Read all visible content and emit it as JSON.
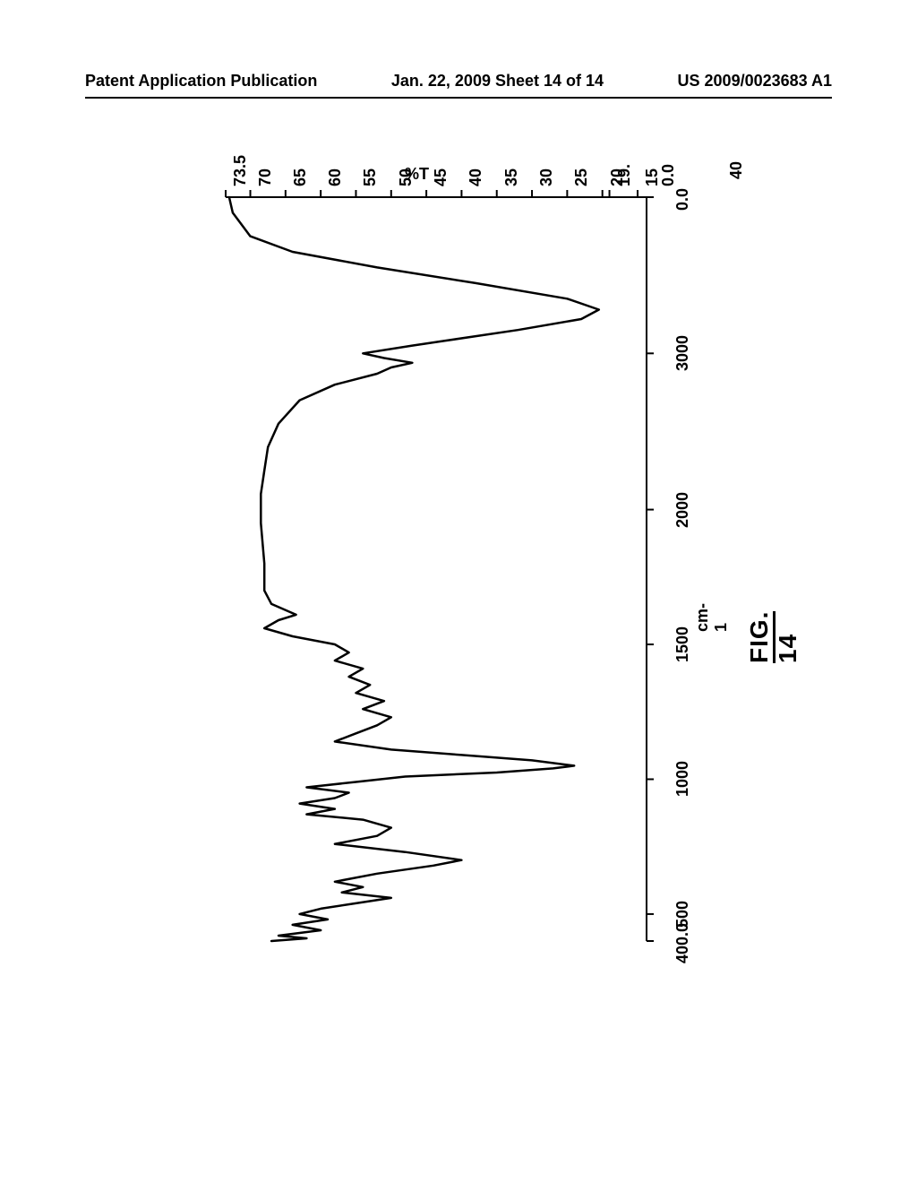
{
  "header": {
    "left": "Patent Application Publication",
    "center": "Jan. 22, 2009  Sheet 14 of 14",
    "right": "US 2009/0023683 A1"
  },
  "figure_caption": {
    "prefix": "FIG.",
    "number": "14"
  },
  "spectrum": {
    "type": "line",
    "xlabel": "cm-1",
    "ylabel": "%T",
    "misc_label": "40",
    "xlim": [
      400,
      4000
    ],
    "ylim": [
      15,
      73.5
    ],
    "xticks": [
      4000,
      3000,
      2000,
      1500,
      1000,
      500,
      400
    ],
    "xtick_labels": [
      "0.0",
      "3000",
      "2000",
      "1500",
      "1000",
      "500",
      "400.0"
    ],
    "yticks": [
      73.5,
      70,
      65,
      60,
      55,
      50,
      45,
      40,
      35,
      30,
      25,
      20,
      19,
      15
    ],
    "ytick_labels": [
      "73.5",
      "70",
      "65",
      "60",
      "55",
      "50",
      "45",
      "40",
      "35",
      "30",
      "25",
      "20",
      "19.",
      "15"
    ],
    "ytick_extra": "0.0",
    "line_color": "#000000",
    "line_width": 2.5,
    "background_color": "#ffffff",
    "axis_color": "#000000",
    "tick_length": 8,
    "data": [
      [
        4000,
        73.0
      ],
      [
        3900,
        72.5
      ],
      [
        3750,
        70.0
      ],
      [
        3650,
        64.0
      ],
      [
        3550,
        52.0
      ],
      [
        3450,
        38.0
      ],
      [
        3350,
        25.0
      ],
      [
        3280,
        20.5
      ],
      [
        3220,
        23.0
      ],
      [
        3150,
        32.0
      ],
      [
        3050,
        47.0
      ],
      [
        3000,
        54.0
      ],
      [
        2970,
        51.0
      ],
      [
        2940,
        47.0
      ],
      [
        2910,
        50.0
      ],
      [
        2870,
        52.0
      ],
      [
        2800,
        58.0
      ],
      [
        2700,
        63.0
      ],
      [
        2550,
        66.0
      ],
      [
        2400,
        67.5
      ],
      [
        2250,
        68.0
      ],
      [
        2100,
        68.5
      ],
      [
        1950,
        68.5
      ],
      [
        1800,
        68.0
      ],
      [
        1700,
        68.0
      ],
      [
        1650,
        67.0
      ],
      [
        1610,
        63.5
      ],
      [
        1590,
        66.0
      ],
      [
        1560,
        68.0
      ],
      [
        1530,
        64.0
      ],
      [
        1500,
        58.0
      ],
      [
        1470,
        56.0
      ],
      [
        1440,
        58.0
      ],
      [
        1410,
        54.0
      ],
      [
        1380,
        56.0
      ],
      [
        1350,
        53.0
      ],
      [
        1320,
        55.0
      ],
      [
        1290,
        51.0
      ],
      [
        1260,
        54.0
      ],
      [
        1230,
        50.0
      ],
      [
        1200,
        52.0
      ],
      [
        1170,
        55.0
      ],
      [
        1140,
        58.0
      ],
      [
        1110,
        50.0
      ],
      [
        1090,
        40.0
      ],
      [
        1070,
        30.0
      ],
      [
        1050,
        24.0
      ],
      [
        1040,
        27.0
      ],
      [
        1025,
        35.0
      ],
      [
        1010,
        48.0
      ],
      [
        990,
        55.0
      ],
      [
        970,
        62.0
      ],
      [
        950,
        56.0
      ],
      [
        930,
        58.0
      ],
      [
        910,
        63.0
      ],
      [
        890,
        58.0
      ],
      [
        870,
        62.0
      ],
      [
        850,
        54.0
      ],
      [
        820,
        50.0
      ],
      [
        790,
        52.0
      ],
      [
        760,
        58.0
      ],
      [
        730,
        48.0
      ],
      [
        700,
        40.0
      ],
      [
        680,
        44.0
      ],
      [
        650,
        52.0
      ],
      [
        620,
        58.0
      ],
      [
        600,
        54.0
      ],
      [
        580,
        57.0
      ],
      [
        560,
        50.0
      ],
      [
        540,
        55.0
      ],
      [
        520,
        60.0
      ],
      [
        500,
        63.0
      ],
      [
        480,
        59.0
      ],
      [
        460,
        64.0
      ],
      [
        440,
        60.0
      ],
      [
        420,
        66.0
      ],
      [
        410,
        62.0
      ],
      [
        400,
        67.0
      ]
    ]
  }
}
